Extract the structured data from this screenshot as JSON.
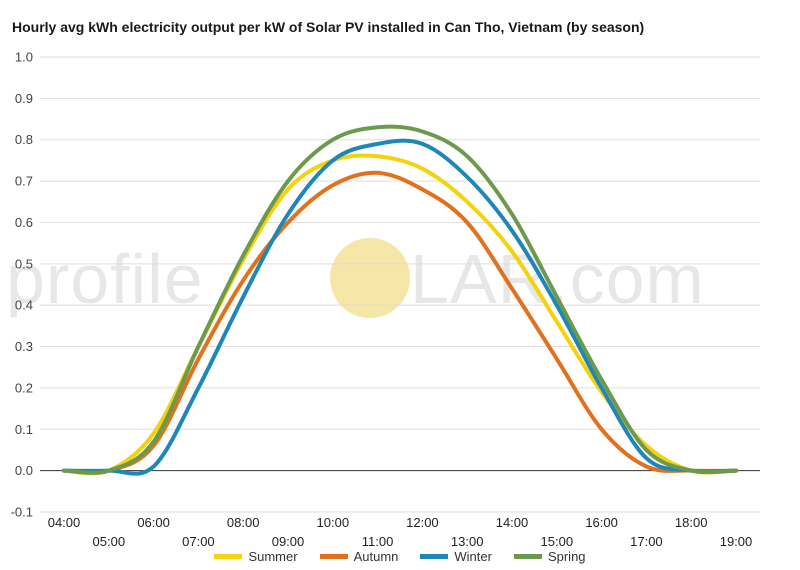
{
  "title": "Hourly avg kWh electricity output per kW of Solar PV installed in Can Tho, Vietnam (by season)",
  "watermark": {
    "left": "profile",
    "right": "LAR.com",
    "sun_color": "#f6e6a8"
  },
  "chart_data": {
    "type": "line",
    "title": "Hourly avg kWh electricity output per kW of Solar PV installed in Can Tho, Vietnam (by season)",
    "xlabel": "",
    "ylabel": "",
    "x": [
      "04:00",
      "05:00",
      "06:00",
      "07:00",
      "08:00",
      "09:00",
      "10:00",
      "11:00",
      "12:00",
      "13:00",
      "14:00",
      "15:00",
      "16:00",
      "17:00",
      "18:00",
      "19:00"
    ],
    "ylim": [
      -0.1,
      1.0
    ],
    "yticks": [
      "-0.1",
      "0.0",
      "0.1",
      "0.2",
      "0.3",
      "0.4",
      "0.5",
      "0.6",
      "0.7",
      "0.8",
      "0.9",
      "1.0"
    ],
    "grid": true,
    "legend_position": "bottom",
    "series": [
      {
        "name": "Summer",
        "color": "#f4d20c",
        "values": [
          0.0,
          0.0,
          0.09,
          0.3,
          0.51,
          0.68,
          0.75,
          0.76,
          0.73,
          0.65,
          0.53,
          0.36,
          0.19,
          0.06,
          0.0,
          0.0
        ]
      },
      {
        "name": "Autumn",
        "color": "#e2711d",
        "values": [
          0.0,
          0.0,
          0.06,
          0.27,
          0.46,
          0.6,
          0.69,
          0.72,
          0.68,
          0.6,
          0.44,
          0.27,
          0.1,
          0.01,
          0.0,
          0.0
        ]
      },
      {
        "name": "Winter",
        "color": "#1e87b8",
        "values": [
          0.0,
          0.0,
          0.01,
          0.2,
          0.42,
          0.62,
          0.75,
          0.79,
          0.79,
          0.71,
          0.58,
          0.4,
          0.2,
          0.03,
          0.0,
          0.0
        ]
      },
      {
        "name": "Spring",
        "color": "#6c9a4c",
        "values": [
          0.0,
          0.0,
          0.07,
          0.3,
          0.52,
          0.7,
          0.8,
          0.83,
          0.82,
          0.76,
          0.62,
          0.42,
          0.22,
          0.05,
          0.0,
          0.0
        ]
      }
    ]
  }
}
